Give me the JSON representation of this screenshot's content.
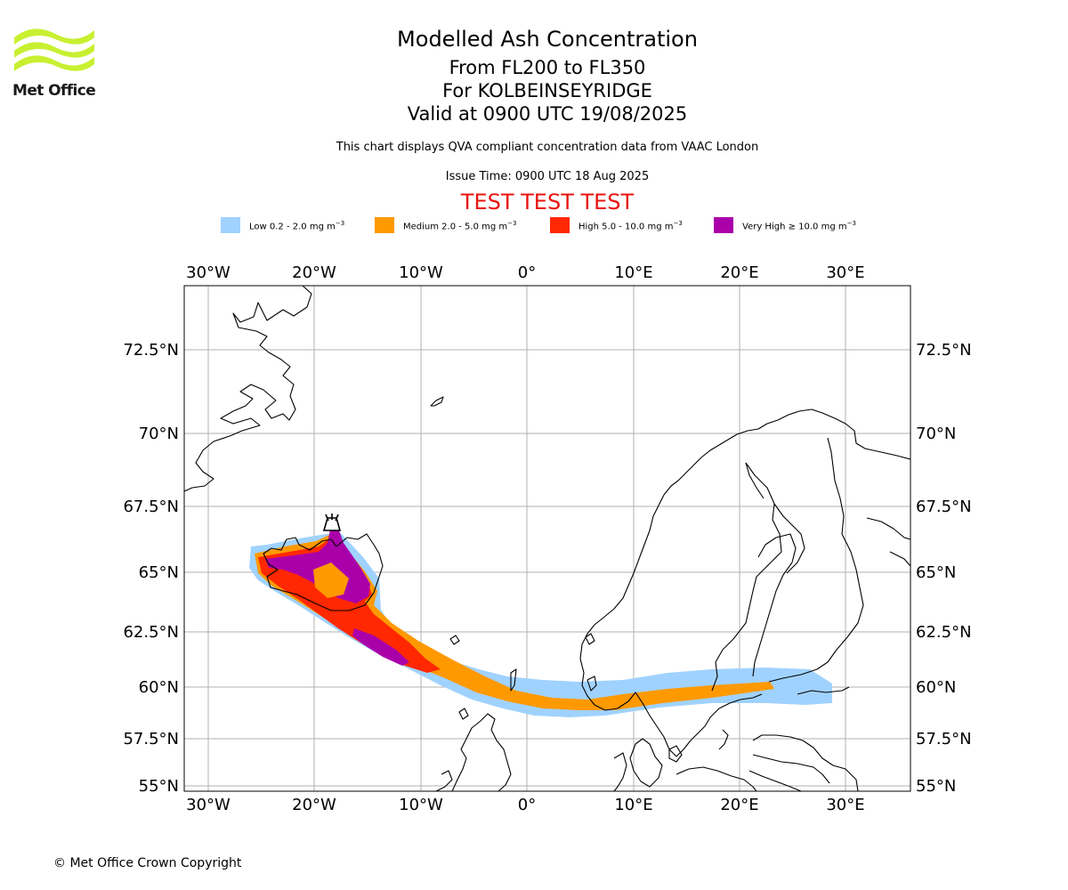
{
  "header": {
    "logo_text": "Met Office",
    "title": "Modelled Ash Concentration",
    "levels": "From FL200 to FL350",
    "volcano": "For KOLBEINSEYRIDGE",
    "valid": "Valid at 0900 UTC 19/08/2025",
    "description": "This chart displays QVA compliant concentration data from VAAC London",
    "issue_time": "Issue Time: 0900 UTC 18 Aug 2025",
    "test_banner": "TEST TEST TEST"
  },
  "legend": [
    {
      "label": "Low 0.2 - 2.0 mg m",
      "unit_exp": "−3",
      "color": "#a0d2ff"
    },
    {
      "label": "Medium 2.0 - 5.0 mg m",
      "unit_exp": "−3",
      "color": "#ff9900"
    },
    {
      "label": "High 5.0 - 10.0 mg m",
      "unit_exp": "−3",
      "color": "#ff2800"
    },
    {
      "label": "Very High ≥ 10.0 mg m",
      "unit_exp": "−3",
      "color": "#aa00aa"
    }
  ],
  "map": {
    "lon_ticks": [
      "30°W",
      "20°W",
      "10°W",
      "0°",
      "10°E",
      "20°E",
      "30°E"
    ],
    "lat_ticks": [
      "72.5°N",
      "70°N",
      "67.5°N",
      "65°N",
      "62.5°N",
      "60°N",
      "57.5°N",
      "55°N"
    ],
    "volcano_marker": "volcano-icon"
  },
  "footer": {
    "copyright": "© Met Office Crown Copyright"
  }
}
